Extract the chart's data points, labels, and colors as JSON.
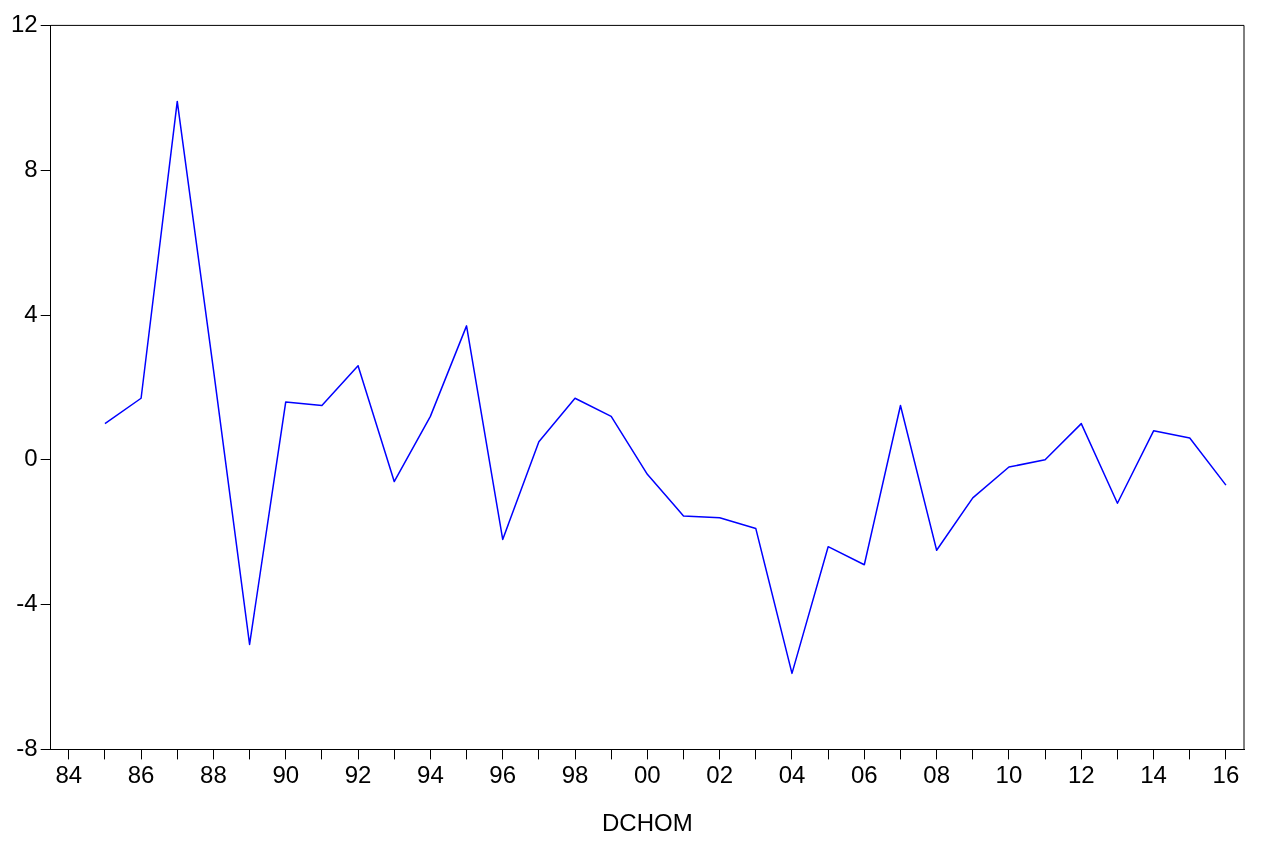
{
  "chart_data": {
    "type": "line",
    "xlabel": "DCHOM",
    "categories": [
      "84",
      null,
      "86",
      null,
      "88",
      null,
      "90",
      null,
      "92",
      null,
      "94",
      null,
      "96",
      null,
      "98",
      null,
      "00",
      null,
      "02",
      null,
      "04",
      null,
      "06",
      null,
      "08",
      null,
      "10",
      null,
      "12",
      null,
      "14",
      null,
      "16"
    ],
    "series": [
      {
        "color": "#0000ff",
        "values": [
          null,
          1.0,
          1.7,
          9.9,
          2.5,
          -5.1,
          1.6,
          1.5,
          2.6,
          -0.6,
          1.2,
          3.7,
          -2.2,
          0.5,
          1.7,
          1.2,
          -0.4,
          -1.55,
          -1.6,
          -1.9,
          -5.9,
          -2.4,
          -2.9,
          1.5,
          -2.5,
          -1.05,
          -0.2,
          0.0,
          1.0,
          -1.2,
          0.8,
          0.6,
          -0.7
        ]
      }
    ],
    "ylim": [
      -8,
      12
    ],
    "yticks": [
      -8,
      -4,
      0,
      4,
      8,
      12
    ],
    "grid": false,
    "legend": false,
    "marker": "none",
    "line_style": "solid"
  }
}
